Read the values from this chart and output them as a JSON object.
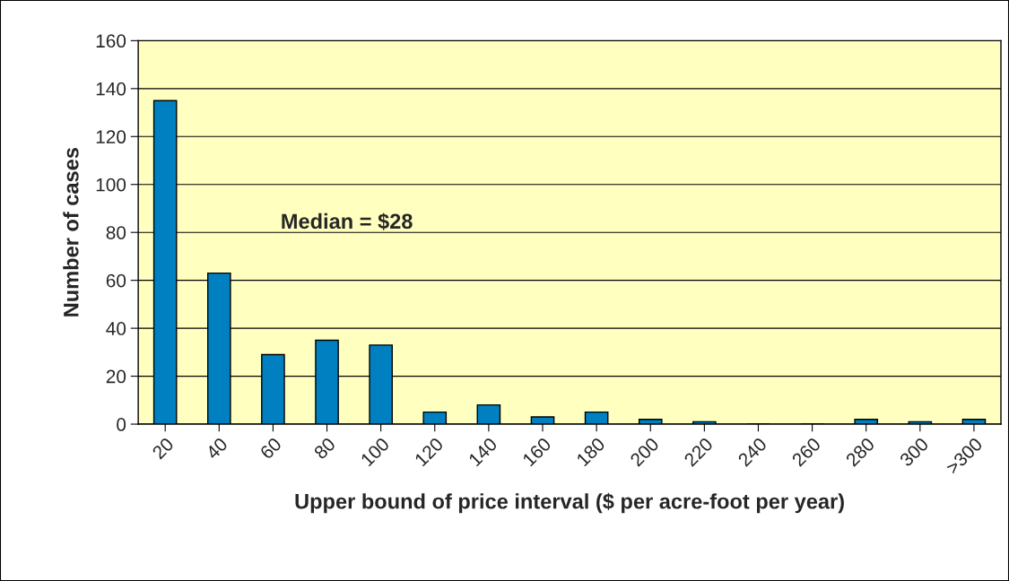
{
  "chart_data": {
    "type": "bar",
    "xlabel": "Upper bound of price interval ($ per acre-foot per year)",
    "ylabel": "Number of cases",
    "categories": [
      "20",
      "40",
      "60",
      "80",
      "100",
      "120",
      "140",
      "160",
      "180",
      "200",
      "220",
      "240",
      "260",
      "280",
      "300",
      ">300"
    ],
    "values": [
      135,
      63,
      29,
      35,
      33,
      5,
      8,
      3,
      5,
      2,
      1,
      0,
      0,
      2,
      1,
      2
    ],
    "color": "#0080c0",
    "ylim": [
      0,
      160
    ],
    "yticks": [
      0,
      20,
      40,
      60,
      80,
      100,
      120,
      140,
      160
    ],
    "grid": "y",
    "annotations": [
      "Median = $28"
    ]
  }
}
